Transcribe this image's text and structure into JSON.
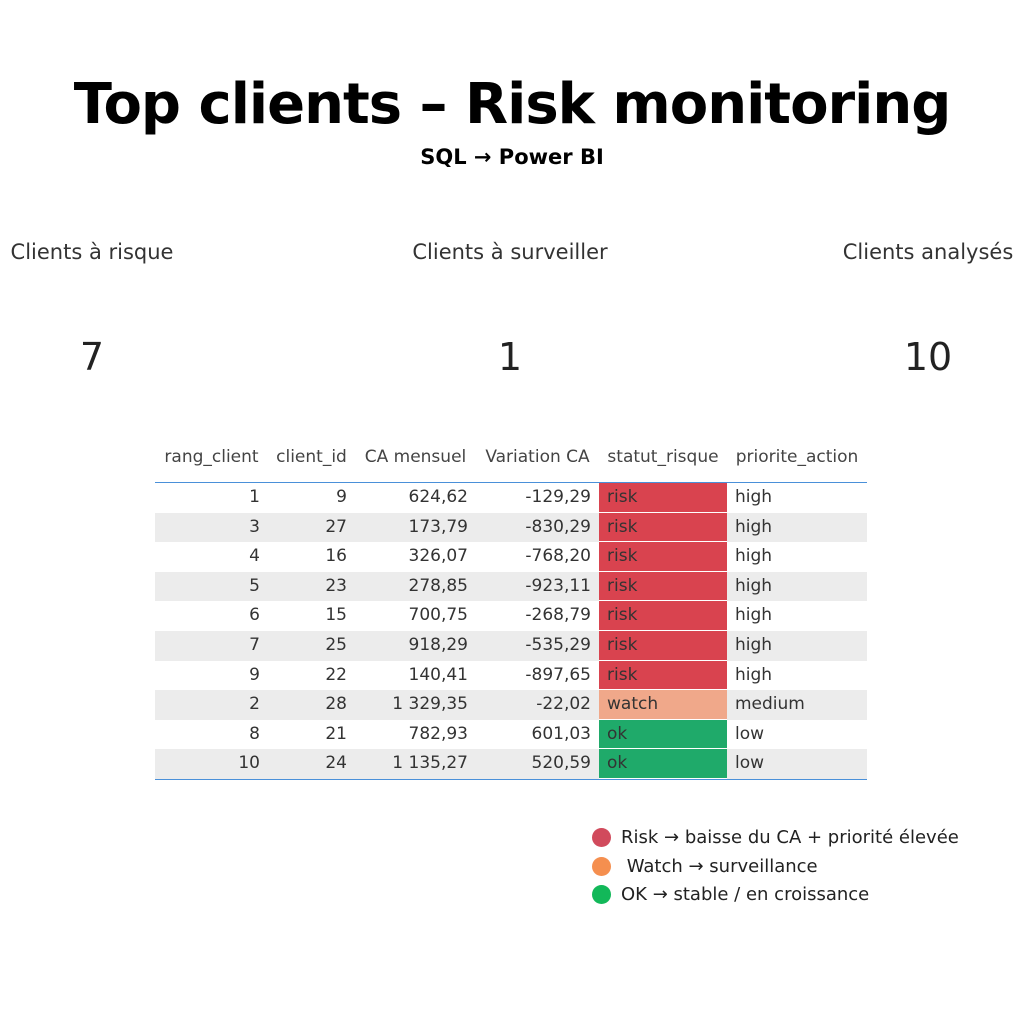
{
  "header": {
    "title": "Top clients – Risk monitoring",
    "subtitle": "SQL → Power BI"
  },
  "kpis": [
    {
      "label": "Clients à risque",
      "value": 7
    },
    {
      "label": "Clients à surveiller",
      "value": 1
    },
    {
      "label": "Clients analysés",
      "value": 10
    }
  ],
  "table": {
    "columns": [
      "rang_client",
      "client_id",
      "CA mensuel",
      "Variation CA",
      "statut_risque",
      "priorite_action"
    ],
    "rows": [
      [
        "1",
        "9",
        "624,62",
        "-129,29",
        "risk",
        "high"
      ],
      [
        "3",
        "27",
        "173,79",
        "-830,29",
        "risk",
        "high"
      ],
      [
        "4",
        "16",
        "326,07",
        "-768,20",
        "risk",
        "high"
      ],
      [
        "5",
        "23",
        "278,85",
        "-923,11",
        "risk",
        "high"
      ],
      [
        "6",
        "15",
        "700,75",
        "-268,79",
        "risk",
        "high"
      ],
      [
        "7",
        "25",
        "918,29",
        "-535,29",
        "risk",
        "high"
      ],
      [
        "9",
        "22",
        "140,41",
        "-897,65",
        "risk",
        "high"
      ],
      [
        "2",
        "28",
        "1 329,35",
        "-22,02",
        "watch",
        "medium"
      ],
      [
        "8",
        "21",
        "782,93",
        "601,03",
        "ok",
        "low"
      ],
      [
        "10",
        "24",
        "1 135,27",
        "520,59",
        "ok",
        "low"
      ]
    ],
    "status_colors": {
      "risk": "#d9434f",
      "watch": "#f0a88a",
      "ok": "#1faa6a"
    }
  },
  "legend": [
    {
      "label": "Risk → baisse du CA + priorité élevée",
      "color": "#d14a5c"
    },
    {
      "label": " Watch → surveillance",
      "color": "#f58f4f"
    },
    {
      "label": "OK → stable / en croissance",
      "color": "#12b859"
    }
  ]
}
